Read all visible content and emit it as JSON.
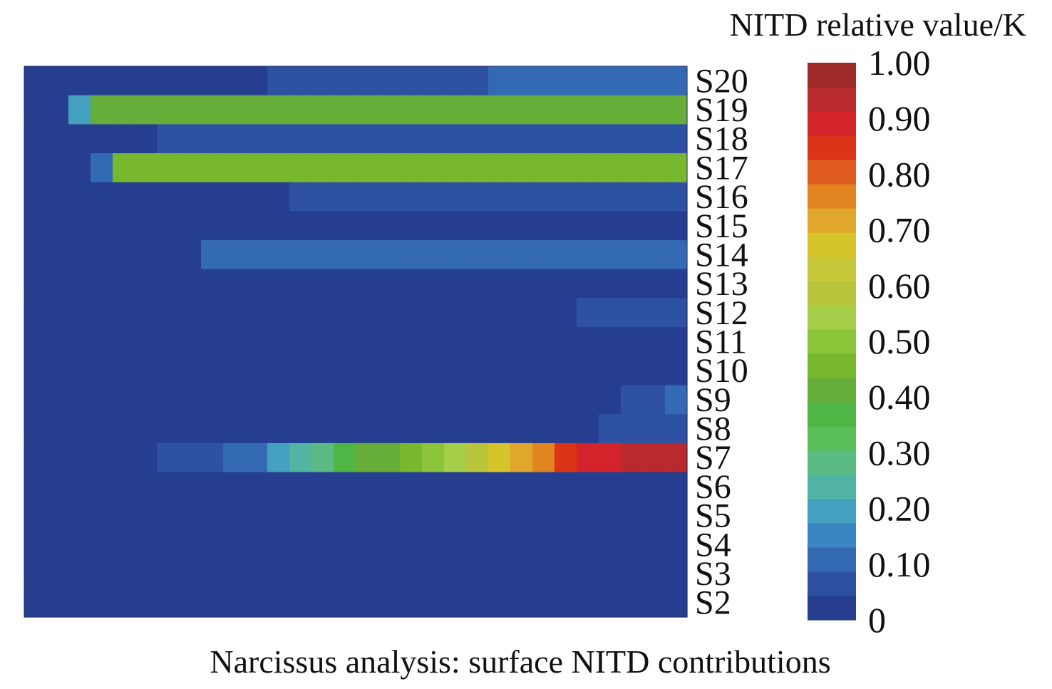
{
  "caption": "Narcissus analysis: surface NITD contributions",
  "chart_data": {
    "type": "heatmap",
    "title": "",
    "rows": [
      "S20",
      "S19",
      "S18",
      "S17",
      "S16",
      "S15",
      "S14",
      "S13",
      "S12",
      "S11",
      "S10",
      "S9",
      "S8",
      "S7",
      "S6",
      "S5",
      "S4",
      "S3",
      "S2"
    ],
    "x_columns": 30,
    "grid": false,
    "values": [
      [
        0.02,
        0.02,
        0.02,
        0.02,
        0.02,
        0.02,
        0.02,
        0.02,
        0.02,
        0.02,
        0.02,
        0.06,
        0.06,
        0.06,
        0.06,
        0.06,
        0.06,
        0.06,
        0.06,
        0.08,
        0.08,
        0.1,
        0.1,
        0.1,
        0.1,
        0.1,
        0.1,
        0.1,
        0.1,
        0.1
      ],
      [
        0.02,
        0.02,
        0.2,
        0.4,
        0.4,
        0.4,
        0.4,
        0.4,
        0.4,
        0.4,
        0.4,
        0.4,
        0.4,
        0.4,
        0.4,
        0.4,
        0.4,
        0.4,
        0.4,
        0.4,
        0.4,
        0.4,
        0.4,
        0.4,
        0.4,
        0.4,
        0.4,
        0.4,
        0.4,
        0.4
      ],
      [
        0.02,
        0.02,
        0.02,
        0.02,
        0.02,
        0.02,
        0.05,
        0.05,
        0.05,
        0.05,
        0.05,
        0.05,
        0.05,
        0.05,
        0.05,
        0.05,
        0.05,
        0.05,
        0.07,
        0.07,
        0.07,
        0.07,
        0.07,
        0.07,
        0.07,
        0.07,
        0.07,
        0.07,
        0.07,
        0.07
      ],
      [
        0.02,
        0.02,
        0.02,
        0.1,
        0.45,
        0.45,
        0.45,
        0.45,
        0.45,
        0.45,
        0.45,
        0.45,
        0.45,
        0.45,
        0.45,
        0.45,
        0.45,
        0.45,
        0.45,
        0.45,
        0.45,
        0.45,
        0.45,
        0.45,
        0.45,
        0.45,
        0.45,
        0.45,
        0.45,
        0.45
      ],
      [
        0.02,
        0.02,
        0.02,
        0.02,
        0.02,
        0.02,
        0.02,
        0.02,
        0.02,
        0.02,
        0.02,
        0.02,
        0.05,
        0.05,
        0.05,
        0.05,
        0.05,
        0.05,
        0.05,
        0.05,
        0.05,
        0.05,
        0.05,
        0.05,
        0.05,
        0.05,
        0.05,
        0.05,
        0.05,
        0.05
      ],
      [
        0.02,
        0.02,
        0.02,
        0.02,
        0.02,
        0.02,
        0.02,
        0.02,
        0.02,
        0.02,
        0.02,
        0.02,
        0.02,
        0.02,
        0.02,
        0.02,
        0.02,
        0.02,
        0.02,
        0.02,
        0.02,
        0.02,
        0.02,
        0.02,
        0.02,
        0.02,
        0.02,
        0.02,
        0.02,
        0.02
      ],
      [
        0.02,
        0.02,
        0.02,
        0.02,
        0.02,
        0.02,
        0.02,
        0.04,
        0.13,
        0.13,
        0.13,
        0.13,
        0.13,
        0.13,
        0.13,
        0.13,
        0.13,
        0.13,
        0.13,
        0.13,
        0.13,
        0.13,
        0.13,
        0.13,
        0.13,
        0.13,
        0.13,
        0.13,
        0.13,
        0.13
      ],
      [
        0.02,
        0.02,
        0.02,
        0.02,
        0.02,
        0.02,
        0.02,
        0.02,
        0.02,
        0.02,
        0.02,
        0.02,
        0.02,
        0.02,
        0.02,
        0.02,
        0.02,
        0.02,
        0.02,
        0.02,
        0.02,
        0.02,
        0.02,
        0.02,
        0.02,
        0.02,
        0.02,
        0.02,
        0.02,
        0.02
      ],
      [
        0.02,
        0.02,
        0.02,
        0.02,
        0.02,
        0.02,
        0.02,
        0.02,
        0.02,
        0.02,
        0.02,
        0.02,
        0.02,
        0.02,
        0.02,
        0.02,
        0.02,
        0.02,
        0.02,
        0.02,
        0.04,
        0.04,
        0.04,
        0.04,
        0.04,
        0.05,
        0.05,
        0.05,
        0.05,
        0.05
      ],
      [
        0.02,
        0.02,
        0.02,
        0.02,
        0.02,
        0.02,
        0.02,
        0.02,
        0.02,
        0.02,
        0.02,
        0.02,
        0.02,
        0.02,
        0.02,
        0.02,
        0.02,
        0.02,
        0.02,
        0.02,
        0.02,
        0.02,
        0.02,
        0.02,
        0.02,
        0.02,
        0.02,
        0.02,
        0.02,
        0.02
      ],
      [
        0.02,
        0.02,
        0.02,
        0.02,
        0.02,
        0.02,
        0.02,
        0.02,
        0.02,
        0.02,
        0.02,
        0.02,
        0.02,
        0.02,
        0.02,
        0.02,
        0.02,
        0.02,
        0.02,
        0.02,
        0.02,
        0.02,
        0.02,
        0.02,
        0.02,
        0.02,
        0.02,
        0.02,
        0.02,
        0.02
      ],
      [
        0.02,
        0.02,
        0.02,
        0.02,
        0.02,
        0.02,
        0.02,
        0.02,
        0.02,
        0.02,
        0.02,
        0.02,
        0.02,
        0.02,
        0.02,
        0.02,
        0.02,
        0.02,
        0.02,
        0.02,
        0.02,
        0.03,
        0.03,
        0.04,
        0.04,
        0.04,
        0.04,
        0.06,
        0.06,
        0.1
      ],
      [
        0.02,
        0.02,
        0.02,
        0.02,
        0.02,
        0.02,
        0.02,
        0.02,
        0.02,
        0.02,
        0.02,
        0.02,
        0.04,
        0.04,
        0.04,
        0.04,
        0.04,
        0.04,
        0.04,
        0.04,
        0.04,
        0.04,
        0.04,
        0.04,
        0.04,
        0.04,
        0.06,
        0.06,
        0.06,
        0.06
      ],
      [
        0.02,
        0.02,
        0.02,
        0.02,
        0.02,
        0.02,
        0.05,
        0.06,
        0.08,
        0.1,
        0.13,
        0.2,
        0.25,
        0.28,
        0.35,
        0.4,
        0.42,
        0.45,
        0.5,
        0.55,
        0.6,
        0.68,
        0.72,
        0.78,
        0.83,
        0.87,
        0.9,
        0.95,
        0.95,
        0.95
      ],
      [
        0.02,
        0.02,
        0.02,
        0.02,
        0.02,
        0.02,
        0.02,
        0.02,
        0.02,
        0.02,
        0.02,
        0.02,
        0.02,
        0.02,
        0.02,
        0.02,
        0.02,
        0.02,
        0.02,
        0.02,
        0.02,
        0.02,
        0.02,
        0.02,
        0.02,
        0.02,
        0.03,
        0.03,
        0.03,
        0.03
      ],
      [
        0.02,
        0.02,
        0.02,
        0.02,
        0.02,
        0.02,
        0.02,
        0.02,
        0.02,
        0.02,
        0.02,
        0.02,
        0.02,
        0.02,
        0.02,
        0.02,
        0.02,
        0.02,
        0.02,
        0.02,
        0.02,
        0.02,
        0.02,
        0.02,
        0.02,
        0.02,
        0.02,
        0.03,
        0.03,
        0.03
      ],
      [
        0.02,
        0.02,
        0.02,
        0.02,
        0.02,
        0.02,
        0.02,
        0.02,
        0.02,
        0.02,
        0.02,
        0.02,
        0.02,
        0.02,
        0.02,
        0.02,
        0.02,
        0.02,
        0.02,
        0.02,
        0.02,
        0.02,
        0.02,
        0.02,
        0.02,
        0.02,
        0.02,
        0.02,
        0.02,
        0.02
      ],
      [
        0.02,
        0.02,
        0.02,
        0.02,
        0.02,
        0.02,
        0.02,
        0.02,
        0.02,
        0.02,
        0.02,
        0.02,
        0.02,
        0.02,
        0.02,
        0.02,
        0.02,
        0.02,
        0.02,
        0.02,
        0.02,
        0.02,
        0.02,
        0.02,
        0.02,
        0.02,
        0.02,
        0.02,
        0.04,
        0.04
      ],
      [
        0.02,
        0.02,
        0.02,
        0.02,
        0.02,
        0.02,
        0.02,
        0.02,
        0.02,
        0.02,
        0.02,
        0.02,
        0.02,
        0.02,
        0.02,
        0.02,
        0.02,
        0.02,
        0.02,
        0.02,
        0.02,
        0.02,
        0.02,
        0.02,
        0.02,
        0.02,
        0.02,
        0.02,
        0.02,
        0.02
      ]
    ],
    "colorbar": {
      "title": "NITD relative value/K",
      "range": [
        0,
        1.0
      ],
      "ticks": [
        0,
        0.1,
        0.2,
        0.3,
        0.4,
        0.5,
        0.6,
        0.7,
        0.8,
        0.9,
        1.0
      ],
      "tick_labels": [
        "0",
        "0.10",
        "0.20",
        "0.30",
        "0.40",
        "0.50",
        "0.60",
        "0.70",
        "0.80",
        "0.90",
        "1.00"
      ],
      "colors": [
        "#263e8f",
        "#2e51a3",
        "#3469b4",
        "#3a86c2",
        "#44a0bf",
        "#52b5a3",
        "#5bbb84",
        "#5bbf5a",
        "#4fb545",
        "#66ad3a",
        "#77b82e",
        "#8cc43a",
        "#a6cf49",
        "#b8c53b",
        "#c7c93a",
        "#d6c52a",
        "#e0a72c",
        "#e28520",
        "#e05b20",
        "#db3418",
        "#d2242a",
        "#b82a2d",
        "#9e2a2a"
      ],
      "placement": "right"
    }
  }
}
